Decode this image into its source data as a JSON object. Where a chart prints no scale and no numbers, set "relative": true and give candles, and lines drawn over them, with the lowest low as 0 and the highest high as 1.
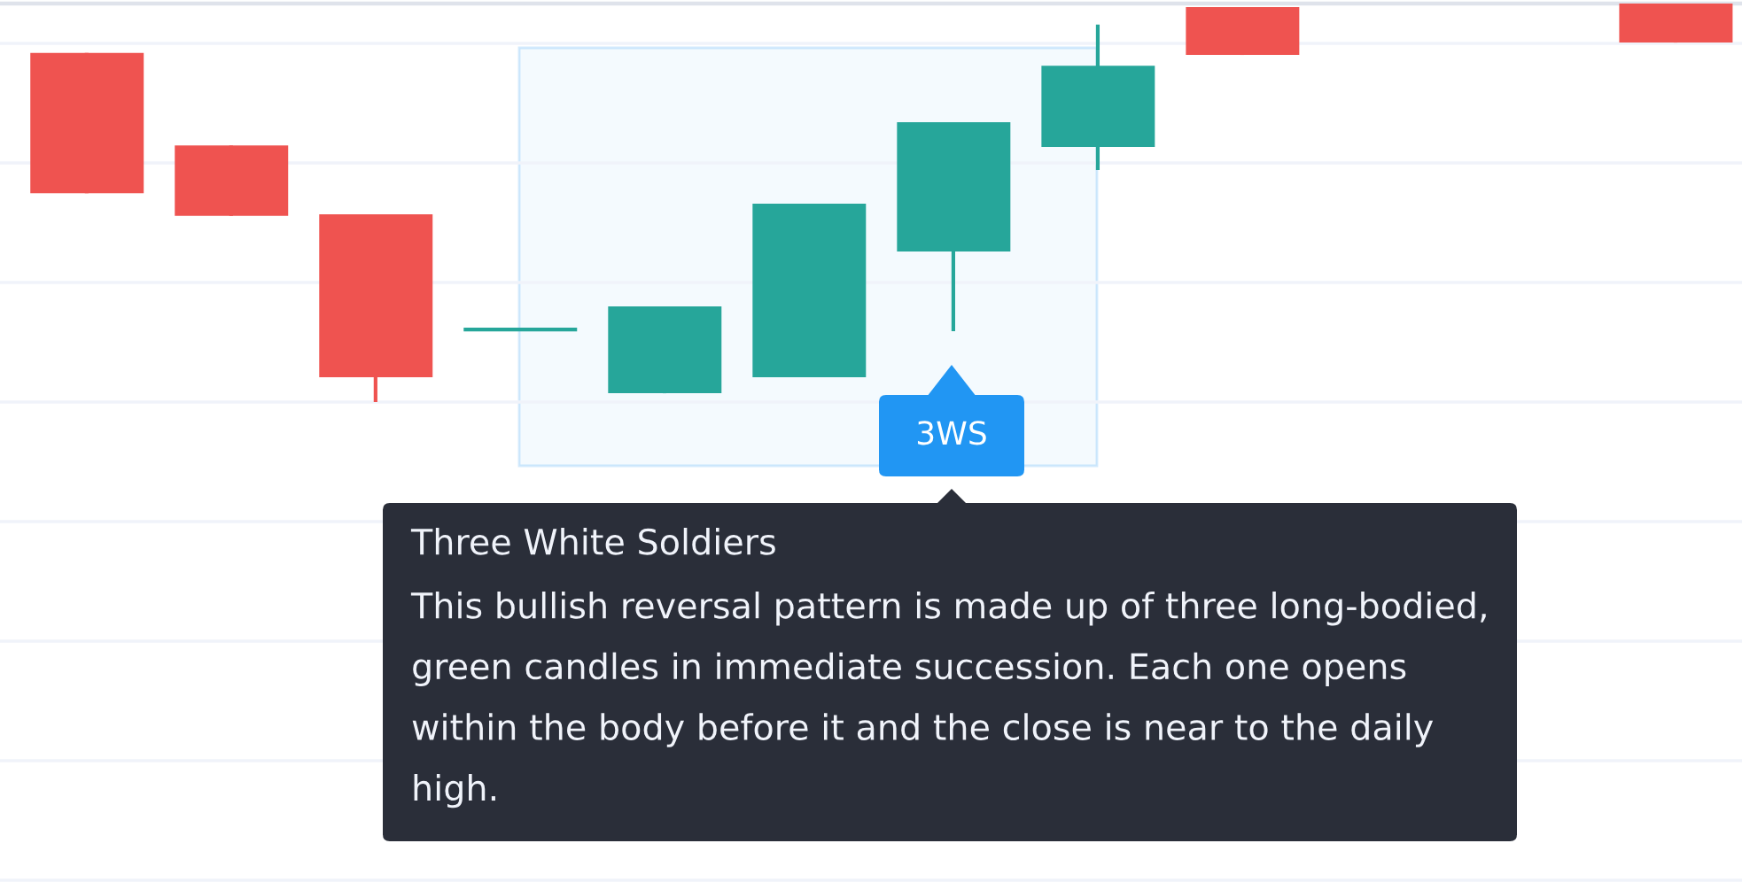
{
  "chart_data": {
    "type": "candlestick",
    "relative": true,
    "categories": [
      null,
      null,
      null,
      null,
      null,
      null,
      null,
      null,
      null,
      null,
      null,
      null
    ],
    "ohlc": [
      [
        0.876,
        0.876,
        0.524,
        0.524
      ],
      [
        0.644,
        0.644,
        0.467,
        0.467
      ],
      [
        0.471,
        0.471,
        0,
        0.062
      ],
      [
        0.182,
        0.182,
        0.182,
        0.182
      ],
      [
        0.022,
        0.24,
        0.022,
        0.24
      ],
      [
        0.062,
        0.498,
        0.062,
        0.498
      ],
      [
        0.378,
        0.702,
        0.178,
        0.702
      ],
      [
        0.64,
        0.947,
        0.582,
        0.844
      ],
      [
        0.991,
        0.991,
        0.871,
        0.871
      ],
      null,
      null,
      [
        1,
        1,
        0.902,
        0.902
      ]
    ],
    "colors": [
      "#ef5350",
      "#ef5350",
      "#ef5350",
      "#26a69a",
      "#26a69a",
      "#26a69a",
      "#26a69a",
      "#26a69a",
      "#ef5350",
      null,
      null,
      "#ef5350"
    ],
    "grid": true,
    "annotations": [
      "3WS",
      "Three White Soldiers",
      "This bullish reversal pattern is made up of three long-bodied, green candles in immediate succession. Each one opens within the body before it and the close is near to the daily high."
    ]
  }
}
